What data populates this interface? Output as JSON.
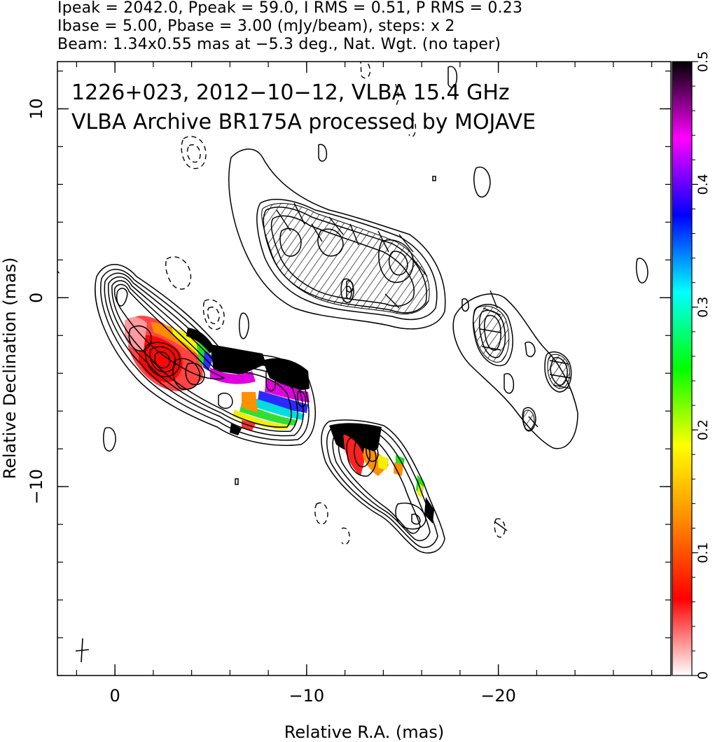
{
  "header": {
    "line1": "Ipeak = 2042.0, Ppeak = 59.0, I RMS = 0.51, P RMS = 0.23",
    "line2": "Ibase = 5.00, Pbase = 3.00 (mJy/beam), steps: x 2",
    "line3": "Beam: 1.34x0.55 mas at −5.3 deg., Nat. Wgt. (no taper)"
  },
  "chart_data": {
    "type": "heatmap",
    "title": "",
    "annotations": [
      "1226+023, 2012−10−12, VLBA 15.4 GHz",
      "VLBA Archive BR175A processed by MOJAVE"
    ],
    "xlabel": "Relative R.A. (mas)",
    "ylabel": "Relative Declination (mas)",
    "xlim": [
      3,
      -29
    ],
    "ylim": [
      -20,
      12.5
    ],
    "x_ticks": [
      {
        "value": 0,
        "label": "0"
      },
      {
        "value": -10,
        "label": "−10"
      },
      {
        "value": -20,
        "label": "−20"
      }
    ],
    "y_ticks": [
      {
        "value": 10,
        "label": "10"
      },
      {
        "value": 0,
        "label": "0"
      },
      {
        "value": -10,
        "label": "−10"
      }
    ],
    "colorbar": {
      "range": [
        0,
        0.5
      ],
      "ticks": [
        {
          "value": 0,
          "label": "0"
        },
        {
          "value": 0.1,
          "label": "0.1"
        },
        {
          "value": 0.2,
          "label": "0.2"
        },
        {
          "value": 0.3,
          "label": "0.3"
        },
        {
          "value": 0.4,
          "label": "0.4"
        },
        {
          "value": 0.5,
          "label": "0.5"
        }
      ],
      "stops": [
        "#ffffff",
        "#ff0000",
        "#ff8800",
        "#ffff00",
        "#00ff00",
        "#00ffff",
        "#0000ff",
        "#ff00ff",
        "#000000"
      ]
    },
    "grid": false,
    "colors": {
      "contour": "#000000",
      "frac_red": "#ff2020",
      "frac_orange": "#ff9000",
      "frac_yellow": "#f0f000",
      "frac_green": "#20e020",
      "frac_cyan": "#00e0e0",
      "frac_blue": "#2020ff",
      "frac_magenta": "#e000e0",
      "frac_black": "#000000"
    }
  }
}
